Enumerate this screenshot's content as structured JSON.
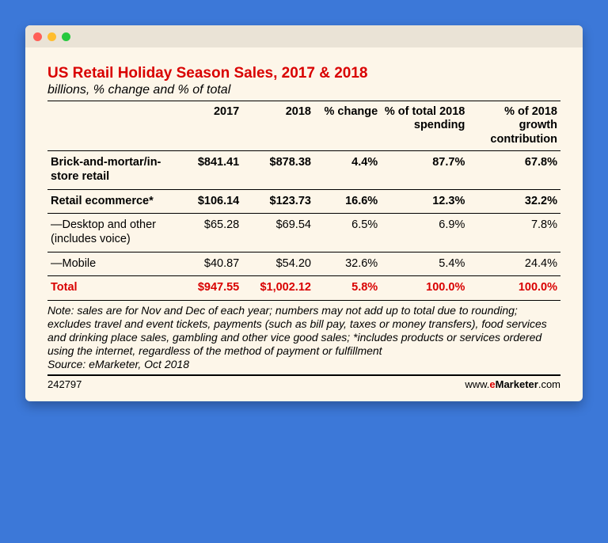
{
  "window": {
    "dot_colors": [
      "#ff5f56",
      "#ffbd2e",
      "#27c93f"
    ],
    "titlebar_bg": "#eae3d6",
    "content_bg": "#fdf6e9"
  },
  "colors": {
    "title": "#d90000",
    "subtitle": "#000000",
    "rule": "#000000",
    "total_text": "#d90000",
    "brand_e": "#d90000",
    "text": "#000000"
  },
  "typography": {
    "title_size": 19,
    "subtitle_size": 16,
    "table_size": 14.5,
    "note_size": 14,
    "footer_size": 13
  },
  "header": {
    "title": "US Retail Holiday Season Sales, 2017 & 2018",
    "subtitle": "billions, % change and % of total"
  },
  "table": {
    "type": "table",
    "columns": [
      "",
      "2017",
      "2018",
      "% change",
      "% of total 2018 spending",
      "% of 2018 growth contribution"
    ],
    "col_widths_pct": [
      25,
      13,
      14,
      13,
      17,
      18
    ],
    "rows": [
      {
        "label": "Brick-and-mortar/in-store retail",
        "bold": true,
        "vals": [
          "$841.41",
          "$878.38",
          "4.4%",
          "87.7%",
          "67.8%"
        ]
      },
      {
        "label": "Retail ecommerce*",
        "bold": true,
        "vals": [
          "$106.14",
          "$123.73",
          "16.6%",
          "12.3%",
          "32.2%"
        ]
      },
      {
        "label": "—Desktop and other (includes voice)",
        "bold": false,
        "vals": [
          "$65.28",
          "$69.54",
          "6.5%",
          "6.9%",
          "7.8%"
        ]
      },
      {
        "label": "—Mobile",
        "bold": false,
        "vals": [
          "$40.87",
          "$54.20",
          "32.6%",
          "5.4%",
          "24.4%"
        ]
      }
    ],
    "total_row": {
      "label": "Total",
      "vals": [
        "$947.55",
        "$1,002.12",
        "5.8%",
        "100.0%",
        "100.0%"
      ]
    }
  },
  "note": "Note: sales are for Nov and Dec of each year; numbers may not add up to total due to rounding; excludes travel and event tickets, payments (such as bill pay, taxes or money transfers), food services and drinking place sales, gambling and other vice good sales; *includes products or services ordered using the internet, regardless of the method of payment or fulfillment\nSource: eMarketer, Oct 2018",
  "footer": {
    "id": "242797",
    "site_prefix": "www.",
    "brand_e": "e",
    "brand_rest": "Marketer",
    "site_suffix": ".com"
  }
}
